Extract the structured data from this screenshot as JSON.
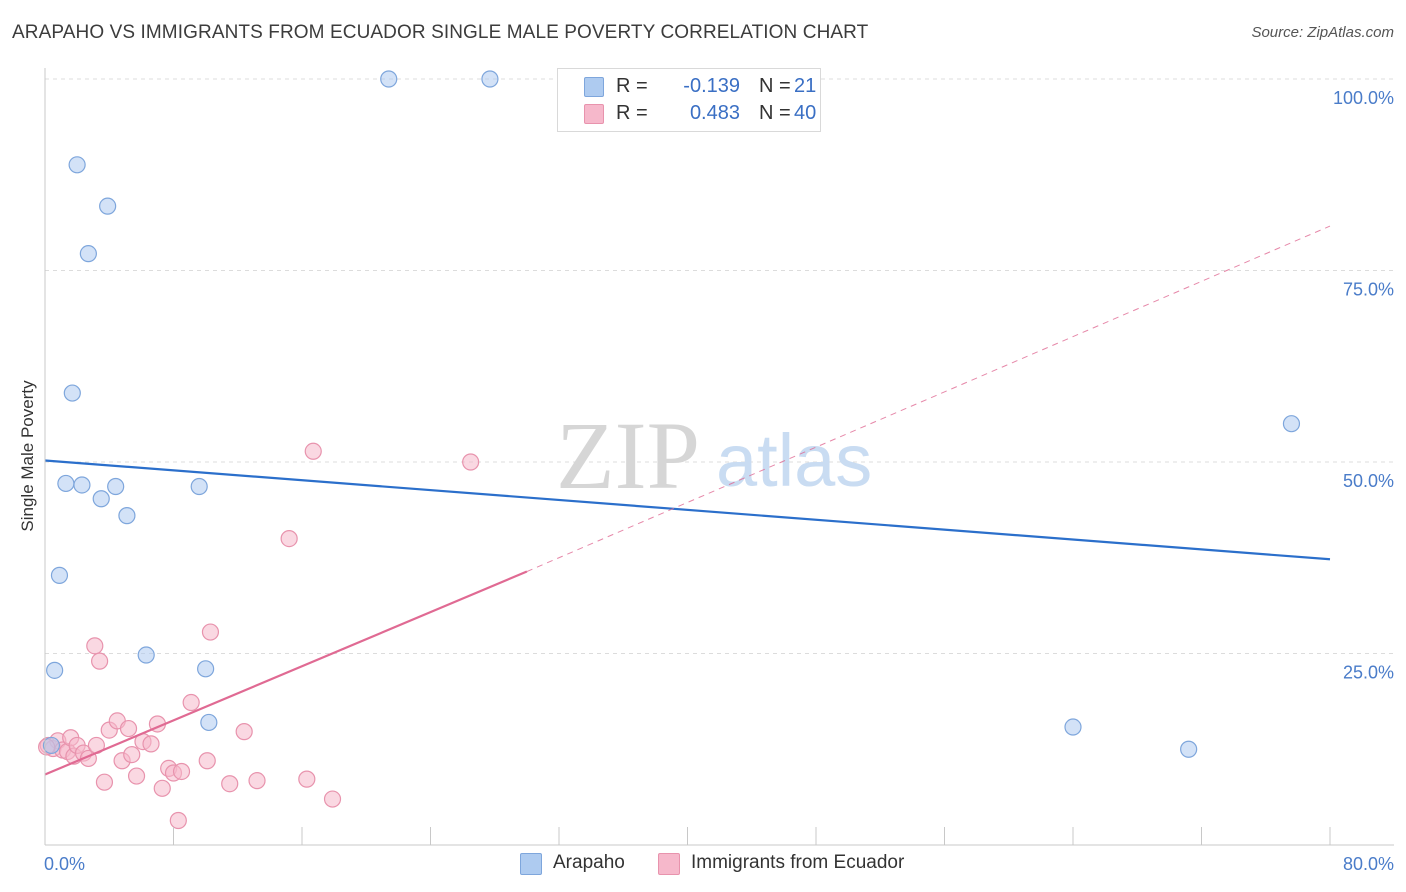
{
  "title": "ARAPAHO VS IMMIGRANTS FROM ECUADOR SINGLE MALE POVERTY CORRELATION CHART",
  "source": "Source: ZipAtlas.com",
  "watermark": {
    "zip": "ZIP",
    "atlas": "atlas"
  },
  "legend": {
    "rows": [
      {
        "r_label": "R =",
        "r_value": "-0.139",
        "n_label": "N =",
        "n_value": "21",
        "color": "#aecbf0"
      },
      {
        "r_label": "R =",
        "r_value": "0.483",
        "n_label": "N =",
        "n_value": "40",
        "color": "#f6b8cb"
      }
    ]
  },
  "bottom_legend": [
    {
      "label": "Arapaho",
      "color": "#aecbf0"
    },
    {
      "label": "Immigrants from Ecuador",
      "color": "#f6b8cb"
    }
  ],
  "colors": {
    "arapaho_fill": "#aecbf0",
    "arapaho_stroke": "#7ea6dc",
    "arapaho_line": "#2b6fcb",
    "ecuador_fill": "#f6b8cb",
    "ecuador_stroke": "#e893ad",
    "ecuador_line": "#e06a93",
    "grid": "#dcdcdc",
    "tick_label": "#4a7cc9"
  },
  "chart_data": {
    "type": "scatter",
    "title": "ARAPAHO VS IMMIGRANTS FROM ECUADOR SINGLE MALE POVERTY CORRELATION CHART",
    "xlabel": "",
    "ylabel": "Single Male Poverty",
    "xlim": [
      0,
      80
    ],
    "ylim": [
      0,
      100
    ],
    "x_tick_labels": [
      {
        "value": 0,
        "label": "0.0%"
      },
      {
        "value": 80,
        "label": "80.0%"
      }
    ],
    "x_minor_ticks": [
      0,
      8,
      16,
      24,
      32,
      40,
      48,
      56,
      64,
      72,
      80
    ],
    "y_ticks": [
      {
        "value": 25,
        "label": "25.0%"
      },
      {
        "value": 50,
        "label": "50.0%"
      },
      {
        "value": 75,
        "label": "75.0%"
      },
      {
        "value": 100,
        "label": "100.0%"
      }
    ],
    "grid": true,
    "series": [
      {
        "name": "Arapaho",
        "points": [
          [
            0.4,
            13.0
          ],
          [
            0.6,
            22.8
          ],
          [
            0.9,
            35.2
          ],
          [
            1.3,
            47.2
          ],
          [
            1.7,
            59.0
          ],
          [
            2.0,
            88.8
          ],
          [
            2.3,
            47.0
          ],
          [
            2.7,
            77.2
          ],
          [
            3.5,
            45.2
          ],
          [
            3.9,
            83.4
          ],
          [
            4.4,
            46.8
          ],
          [
            5.1,
            43.0
          ],
          [
            6.3,
            24.8
          ],
          [
            9.6,
            46.8
          ],
          [
            10.0,
            23.0
          ],
          [
            10.2,
            16.0
          ],
          [
            21.4,
            100.0
          ],
          [
            27.7,
            100.0
          ],
          [
            64.0,
            15.4
          ],
          [
            71.2,
            12.5
          ],
          [
            77.6,
            55.0
          ]
        ],
        "trend": {
          "x1": 0,
          "y1": 50.2,
          "x2": 80,
          "y2": 37.3
        }
      },
      {
        "name": "Immigrants from Ecuador",
        "points": [
          [
            0.2,
            13.0
          ],
          [
            0.5,
            12.6
          ],
          [
            0.8,
            13.6
          ],
          [
            1.1,
            12.4
          ],
          [
            1.4,
            12.2
          ],
          [
            1.6,
            14.0
          ],
          [
            1.8,
            11.6
          ],
          [
            2.0,
            13.0
          ],
          [
            2.4,
            12.0
          ],
          [
            2.7,
            11.3
          ],
          [
            3.1,
            26.0
          ],
          [
            3.2,
            13.0
          ],
          [
            3.4,
            24.0
          ],
          [
            3.7,
            8.2
          ],
          [
            4.0,
            15.0
          ],
          [
            4.5,
            16.2
          ],
          [
            4.8,
            11.0
          ],
          [
            5.2,
            15.2
          ],
          [
            5.4,
            11.8
          ],
          [
            5.7,
            9.0
          ],
          [
            6.1,
            13.5
          ],
          [
            6.6,
            13.2
          ],
          [
            7.0,
            15.8
          ],
          [
            7.3,
            7.4
          ],
          [
            7.7,
            10.0
          ],
          [
            8.0,
            9.4
          ],
          [
            8.3,
            3.2
          ],
          [
            8.5,
            9.6
          ],
          [
            9.1,
            18.6
          ],
          [
            10.1,
            11.0
          ],
          [
            10.3,
            27.8
          ],
          [
            11.5,
            8.0
          ],
          [
            12.4,
            14.8
          ],
          [
            13.2,
            8.4
          ],
          [
            15.2,
            40.0
          ],
          [
            16.3,
            8.6
          ],
          [
            16.7,
            51.4
          ],
          [
            17.9,
            6.0
          ],
          [
            26.5,
            50.0
          ],
          [
            0.1,
            12.8
          ]
        ],
        "trend_solid": {
          "x1": 0,
          "y1": 9.2,
          "x2": 30,
          "y2": 35.7
        },
        "trend_dashed": {
          "x1": 30,
          "y1": 35.7,
          "x2": 80,
          "y2": 80.8
        }
      }
    ]
  }
}
